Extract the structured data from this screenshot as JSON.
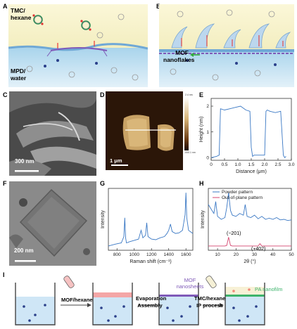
{
  "panels": {
    "A": {
      "label": "A",
      "top_text": [
        "TMC/",
        "hexane"
      ],
      "bottom_text": [
        "MPD/",
        "water"
      ]
    },
    "B": {
      "label": "B",
      "mof_text": [
        "MOF",
        "nanoflakes"
      ]
    },
    "C": {
      "label": "C",
      "scalebar": "300 nm"
    },
    "D": {
      "label": "D",
      "scalebar": "1 μm",
      "colorbar_top": "2.4 nm",
      "colorbar_bottom": "-000.1 nm"
    },
    "E": {
      "label": "E"
    },
    "F": {
      "label": "F",
      "scalebar": "200 nm"
    },
    "G": {
      "label": "G"
    },
    "H": {
      "label": "H",
      "annot1": "(−201)",
      "annot2": "(−402)"
    },
    "I": {
      "label": "I",
      "step1": "MOF/hexane",
      "step2a": "Evaporation",
      "step2b": "Assembly",
      "mof_label": [
        "MOF",
        "nanosheets"
      ],
      "step3a": "TMC/hexane",
      "step3b": "IP process",
      "pa_label": "PA nanofilm"
    }
  },
  "chart_data": [
    {
      "panel": "E",
      "type": "line",
      "xlabel": "Distance (μm)",
      "ylabel": "Height (nm)",
      "xlim": [
        0,
        3
      ],
      "ylim": [
        -0.1,
        2.3
      ],
      "xticks": [
        "0",
        "0.5",
        "1.0",
        "1.5",
        "2.0",
        "2.5",
        "3.0"
      ],
      "yticks": [
        "0",
        "1",
        "2"
      ],
      "color": "#3a78c4",
      "series": [
        {
          "x": [
            0,
            0.2,
            0.3,
            0.35,
            0.5,
            0.7,
            0.9,
            1.1,
            1.3,
            1.45,
            1.5,
            1.55,
            1.6,
            1.8,
            2.0,
            2.05,
            2.1,
            2.2,
            2.4,
            2.6,
            2.7,
            2.75,
            2.8
          ],
          "y": [
            0.0,
            0.05,
            0.1,
            1.9,
            1.85,
            1.9,
            1.95,
            2.0,
            1.85,
            1.8,
            0.4,
            0.05,
            0.1,
            0.1,
            0.1,
            1.8,
            1.85,
            1.8,
            1.75,
            1.8,
            0.1,
            0.0,
            0.05
          ]
        }
      ]
    },
    {
      "panel": "G",
      "type": "line",
      "xlabel": "Raman shift (cm⁻¹)",
      "ylabel": "Intensity",
      "xlim": [
        700,
        1680
      ],
      "xticks": [
        "800",
        "1000",
        "1200",
        "1400",
        "1600"
      ],
      "color": "#3a78c4",
      "series": [
        {
          "x": [
            700,
            780,
            850,
            880,
            890,
            900,
            910,
            950,
            1000,
            1050,
            1080,
            1100,
            1130,
            1145,
            1160,
            1200,
            1250,
            1300,
            1350,
            1380,
            1400,
            1420,
            1440,
            1480,
            1520,
            1560,
            1590,
            1600,
            1610,
            1630,
            1680
          ],
          "y": [
            0.05,
            0.08,
            0.1,
            0.2,
            0.5,
            0.18,
            0.1,
            0.12,
            0.14,
            0.16,
            0.3,
            0.18,
            0.22,
            0.42,
            0.2,
            0.16,
            0.15,
            0.18,
            0.2,
            0.25,
            0.3,
            0.4,
            0.28,
            0.25,
            0.26,
            0.3,
            0.55,
            0.9,
            0.5,
            0.3,
            0.25
          ]
        }
      ]
    },
    {
      "panel": "H",
      "type": "line",
      "xlabel": "2θ (°)",
      "ylabel": "Intensity",
      "xlim": [
        5,
        50
      ],
      "xticks": [
        "10",
        "20",
        "30",
        "40",
        "50"
      ],
      "legend": [
        {
          "name": "Powder pattern",
          "color": "#3a78c4"
        },
        {
          "name": "Out-of-plane pattern",
          "color": "#d4466f"
        }
      ],
      "series": [
        {
          "name": "Powder pattern",
          "x": [
            5,
            7,
            8,
            9,
            10,
            12,
            14,
            15,
            16,
            17,
            18,
            20,
            22,
            24,
            25,
            26,
            28,
            30,
            32,
            34,
            36,
            38,
            40,
            42,
            44,
            46,
            48,
            50
          ],
          "y": [
            0.8,
            0.7,
            0.65,
            0.85,
            0.6,
            0.55,
            0.58,
            0.75,
            1.0,
            0.7,
            0.62,
            0.6,
            0.65,
            0.62,
            0.8,
            0.6,
            0.58,
            0.62,
            0.56,
            0.6,
            0.55,
            0.57,
            0.55,
            0.58,
            0.54,
            0.55,
            0.53,
            0.54
          ]
        },
        {
          "name": "Out-of-plane pattern",
          "x": [
            5,
            10,
            14,
            15,
            16,
            17,
            18,
            25,
            30,
            32,
            33,
            34,
            35,
            40,
            45,
            50
          ],
          "y": [
            0.1,
            0.1,
            0.1,
            0.11,
            0.25,
            0.11,
            0.1,
            0.1,
            0.1,
            0.1,
            0.14,
            0.1,
            0.1,
            0.1,
            0.1,
            0.1
          ]
        }
      ]
    }
  ]
}
